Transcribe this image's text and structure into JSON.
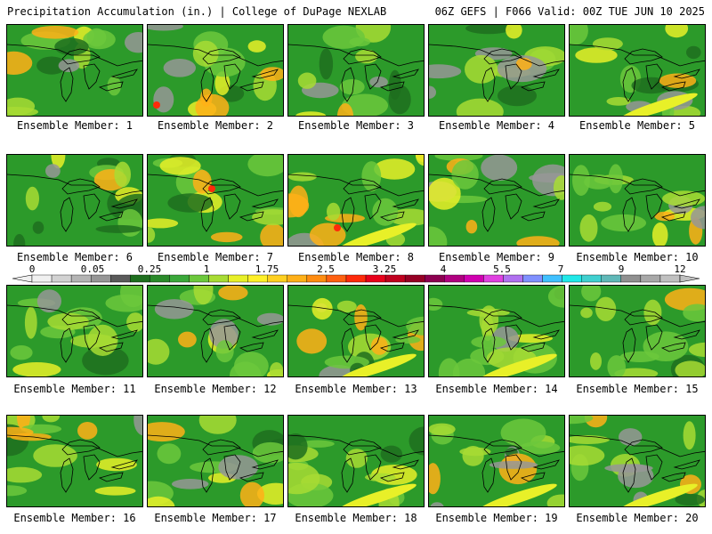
{
  "header": {
    "title_left": "Precipitation Accumulation (in.) | College of DuPage NEXLAB",
    "title_right": "06Z GEFS | F066 Valid: 00Z TUE JUN 10 2025"
  },
  "panels": [
    {
      "label": "Ensemble Member: 1"
    },
    {
      "label": "Ensemble Member: 2"
    },
    {
      "label": "Ensemble Member: 3"
    },
    {
      "label": "Ensemble Member: 4"
    },
    {
      "label": "Ensemble Member: 5"
    },
    {
      "label": "Ensemble Member: 6"
    },
    {
      "label": "Ensemble Member: 7"
    },
    {
      "label": "Ensemble Member: 8"
    },
    {
      "label": "Ensemble Member: 9"
    },
    {
      "label": "Ensemble Member: 10"
    },
    {
      "label": "Ensemble Member: 11"
    },
    {
      "label": "Ensemble Member: 12"
    },
    {
      "label": "Ensemble Member: 13"
    },
    {
      "label": "Ensemble Member: 14"
    },
    {
      "label": "Ensemble Member: 15"
    },
    {
      "label": "Ensemble Member: 16"
    },
    {
      "label": "Ensemble Member: 17"
    },
    {
      "label": "Ensemble Member: 18"
    },
    {
      "label": "Ensemble Member: 19"
    },
    {
      "label": "Ensemble Member: 20"
    }
  ],
  "colorbar": {
    "tick_labels": [
      "0",
      "0.05",
      "0.25",
      "1",
      "1.75",
      "2.5",
      "3.25",
      "4",
      "5.5",
      "7",
      "9",
      "12"
    ],
    "colors": [
      "#f0f0f0",
      "#d2d2d2",
      "#b4b4b4",
      "#969696",
      "#5a5a5a",
      "#1e6e1e",
      "#2a8a2a",
      "#3aa83a",
      "#6cc83c",
      "#a8dc34",
      "#e8f028",
      "#fff028",
      "#ffd020",
      "#ffb018",
      "#ff8c10",
      "#ff6010",
      "#ff2a0a",
      "#e8001a",
      "#c0001e",
      "#960024",
      "#8c0050",
      "#b00080",
      "#d000b0",
      "#e040e0",
      "#b070f0",
      "#8090ff",
      "#40c0ff",
      "#20e8e8",
      "#40d0d0",
      "#60b8b8",
      "#909090",
      "#a8a8a8",
      "#c0c0c0"
    ]
  },
  "map": {
    "background_color": "#2c9a2a",
    "palette": {
      "light_green": "#6cc83c",
      "yellow_green": "#a8dc34",
      "yellow": "#e8f028",
      "orange": "#ffb018",
      "red": "#ff2a0a",
      "gray": "#969696",
      "dark_green": "#1e6e1e"
    }
  }
}
